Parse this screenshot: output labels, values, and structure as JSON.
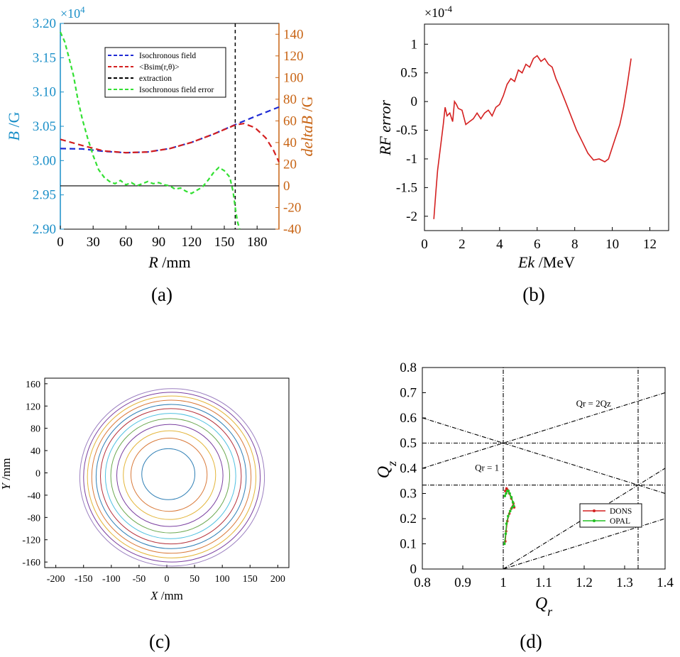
{
  "figure": {
    "labels": [
      "(a)",
      "(b)",
      "(c)",
      "(d)"
    ]
  },
  "colors": {
    "left_axis": "#1a8fc8",
    "right_axis": "#c86414",
    "blue": "#1f2bd4",
    "red": "#d42020",
    "green": "#33e033",
    "black": "#000000",
    "orange_series": "#e06820",
    "green_series": "#22c022"
  },
  "chart_data": [
    {
      "id": "a",
      "type": "line",
      "xlabel_italic": "R",
      "xlabel_unit": " /mm",
      "ylabel_italic": "B",
      "ylabel_unit": " /G",
      "y2label_italic": "deltaB",
      "y2label_unit": " /G",
      "exponent_label": "×10",
      "exponent_power": "4",
      "xlim": [
        0,
        200
      ],
      "ylim": [
        2.9,
        3.2
      ],
      "y2lim": [
        -40,
        150
      ],
      "xticks": [
        "0",
        "30",
        "60",
        "90",
        "120",
        "150",
        "180"
      ],
      "yticks": [
        "2.90",
        "2.95",
        "3.00",
        "3.05",
        "3.10",
        "3.15",
        "3.20"
      ],
      "y2ticks": [
        "-40",
        "-20",
        "0",
        "20",
        "40",
        "60",
        "80",
        "100",
        "120",
        "140"
      ],
      "legend": [
        "Isochronous field",
        "<Bsim(r,θ)>",
        "extraction",
        "Isochronous field error"
      ],
      "series": [
        {
          "name": "Isochronous field",
          "axis": "left",
          "x": [
            0,
            20,
            40,
            60,
            80,
            100,
            120,
            140,
            160,
            180,
            200
          ],
          "y": [
            3.0175,
            3.017,
            3.0135,
            3.0115,
            3.0125,
            3.0175,
            3.0265,
            3.0385,
            3.0525,
            3.0655,
            3.078
          ]
        },
        {
          "name": "<Bsim(r,θ)>",
          "axis": "left",
          "x": [
            0,
            20,
            40,
            60,
            80,
            100,
            120,
            140,
            160,
            168,
            178,
            188,
            195,
            200
          ],
          "y": [
            3.031,
            3.022,
            3.014,
            3.0115,
            3.0125,
            3.0175,
            3.0265,
            3.0385,
            3.052,
            3.054,
            3.048,
            3.033,
            3.015,
            2.998
          ]
        },
        {
          "name": "Isochronous field error",
          "axis": "right",
          "x": [
            0,
            4,
            8,
            12,
            16,
            20,
            25,
            30,
            35,
            40,
            45,
            50,
            55,
            60,
            65,
            70,
            75,
            80,
            85,
            90,
            95,
            100,
            105,
            110,
            115,
            120,
            125,
            130,
            135,
            140,
            145,
            150,
            155,
            158,
            160,
            162,
            164
          ],
          "y": [
            142,
            133,
            118,
            102,
            80,
            62,
            44,
            28,
            15,
            8,
            4,
            2,
            5,
            1,
            3,
            0,
            2,
            4,
            2,
            3,
            1,
            0,
            -3,
            -2,
            -5,
            -7,
            -4,
            -1,
            5,
            12,
            17,
            14,
            8,
            -5,
            -20,
            -33,
            -40
          ]
        }
      ],
      "vline_x": 160,
      "hline_y2": 0
    },
    {
      "id": "b",
      "type": "line",
      "xlabel_italic": "Ek",
      "xlabel_unit": " /MeV",
      "ylabel_italic": "RF error",
      "exponent_label": "×10",
      "exponent_power": "-4",
      "xlim": [
        0,
        13
      ],
      "ylim": [
        -2.25,
        1.35
      ],
      "xticks": [
        "0",
        "2",
        "4",
        "6",
        "8",
        "10",
        "12"
      ],
      "xtick_values": [
        0,
        2,
        4,
        6,
        8,
        10,
        12
      ],
      "yticks": [
        "-2",
        "-1.5",
        "-1",
        "-0.5",
        "0",
        "0.5",
        "1"
      ],
      "ytick_values": [
        -2,
        -1.5,
        -1,
        -0.5,
        0,
        0.5,
        1
      ],
      "series": [
        {
          "name": "RF error",
          "x": [
            0.5,
            0.6,
            0.7,
            0.85,
            1.0,
            1.1,
            1.2,
            1.35,
            1.5,
            1.6,
            1.7,
            1.8,
            2.0,
            2.2,
            2.4,
            2.6,
            2.8,
            3.0,
            3.2,
            3.4,
            3.6,
            3.8,
            4.0,
            4.2,
            4.4,
            4.6,
            4.8,
            5.0,
            5.2,
            5.4,
            5.6,
            5.8,
            6.0,
            6.2,
            6.4,
            6.6,
            6.8,
            7.0,
            7.2,
            7.5,
            7.8,
            8.1,
            8.4,
            8.7,
            9.0,
            9.3,
            9.6,
            9.8,
            10.0,
            10.2,
            10.4,
            10.6,
            10.8,
            11.0
          ],
          "y": [
            -2.05,
            -1.6,
            -1.2,
            -0.8,
            -0.4,
            -0.1,
            -0.25,
            -0.2,
            -0.35,
            0.0,
            -0.05,
            -0.12,
            -0.15,
            -0.4,
            -0.35,
            -0.3,
            -0.2,
            -0.3,
            -0.2,
            -0.15,
            -0.25,
            -0.1,
            -0.05,
            0.1,
            0.3,
            0.4,
            0.35,
            0.55,
            0.5,
            0.65,
            0.6,
            0.75,
            0.8,
            0.7,
            0.75,
            0.65,
            0.6,
            0.4,
            0.25,
            0.0,
            -0.25,
            -0.5,
            -0.7,
            -0.9,
            -1.02,
            -1.0,
            -1.05,
            -1.0,
            -0.8,
            -0.6,
            -0.4,
            -0.1,
            0.3,
            0.75
          ]
        }
      ]
    },
    {
      "id": "c",
      "type": "scatter",
      "description_free": true,
      "xlabel_italic": "X",
      "xlabel_unit": " /mm",
      "ylabel_italic": "Y",
      "ylabel_unit": " /mm",
      "xlim": [
        -220,
        220
      ],
      "ylim": [
        -170,
        170
      ],
      "xticks": [
        "-200",
        "-150",
        "-100",
        "-50",
        "0",
        "50",
        "100",
        "150",
        "200"
      ],
      "xtick_values": [
        -200,
        -150,
        -100,
        -50,
        0,
        50,
        100,
        150,
        200
      ],
      "yticks": [
        "-160",
        "-120",
        "-80",
        "-40",
        "0",
        "40",
        "80",
        "120",
        "160"
      ],
      "ytick_values": [
        -160,
        -120,
        -80,
        -40,
        0,
        40,
        80,
        120,
        160
      ],
      "orbit_radii": [
        46,
        66,
        80,
        92,
        103,
        113,
        122,
        130,
        138,
        146,
        153,
        160
      ],
      "orbit_colors": [
        "#2f7fb5",
        "#d97a3a",
        "#e3b53a",
        "#7a3fa0",
        "#6aa84f",
        "#4fc0e0",
        "#b5303a",
        "#2f7fb5",
        "#d97a3a",
        "#e3b53a",
        "#7a3fa0",
        "#9b7fc0"
      ]
    },
    {
      "id": "d",
      "type": "line",
      "xlabel_italic": "Q",
      "xlabel_sub": "r",
      "ylabel_italic": "Q",
      "ylabel_sub": "z",
      "xlim": [
        0.8,
        1.4
      ],
      "ylim": [
        0,
        0.8
      ],
      "xticks": [
        "0.8",
        "0.9",
        "1",
        "1.1",
        "1.2",
        "1.3",
        "1.4"
      ],
      "xtick_values": [
        0.8,
        0.9,
        1.0,
        1.1,
        1.2,
        1.3,
        1.4
      ],
      "yticks": [
        "0",
        "0.1",
        "0.2",
        "0.3",
        "0.4",
        "0.5",
        "0.6",
        "0.7",
        "0.8"
      ],
      "ytick_values": [
        0,
        0.1,
        0.2,
        0.3,
        0.4,
        0.5,
        0.6,
        0.7,
        0.8
      ],
      "annotations": [
        {
          "text": "Qr = 2Qz",
          "x": 1.18,
          "y": 0.645
        },
        {
          "text": "Qr = 1",
          "x": 0.93,
          "y": 0.39
        }
      ],
      "resonance_lines": [
        {
          "x1": 1.0,
          "y1": 0,
          "x2": 1.0,
          "y2": 0.8
        },
        {
          "x1": 1.3333,
          "y1": 0,
          "x2": 1.3333,
          "y2": 0.8
        },
        {
          "x1": 0.8,
          "y1": 0.5,
          "x2": 1.4,
          "y2": 0.5
        },
        {
          "x1": 0.8,
          "y1": 0.3333,
          "x2": 1.4,
          "y2": 0.3333
        },
        {
          "x1": 0.8,
          "y1": 0.4,
          "x2": 1.4,
          "y2": 0.7
        },
        {
          "x1": 0.8,
          "y1": 0.6,
          "x2": 1.4,
          "y2": 0.3
        },
        {
          "x1": 1.0,
          "y1": 0,
          "x2": 1.4,
          "y2": 0.4
        },
        {
          "x1": 1.0,
          "y1": 0,
          "x2": 1.4,
          "y2": 0.2
        }
      ],
      "legend": [
        "DONS",
        "OPAL"
      ],
      "series": [
        {
          "name": "DONS",
          "x": [
            1.005,
            1.007,
            1.01,
            1.015,
            1.02,
            1.024,
            1.027,
            1.025,
            1.02,
            1.015,
            1.012,
            1.01,
            1.008,
            1.005
          ],
          "y": [
            0.11,
            0.15,
            0.19,
            0.22,
            0.24,
            0.25,
            0.245,
            0.26,
            0.28,
            0.3,
            0.31,
            0.315,
            0.32,
            0.31
          ]
        },
        {
          "name": "OPAL",
          "x": [
            1.003,
            1.006,
            1.008,
            1.012,
            1.017,
            1.022,
            1.026,
            1.024,
            1.02,
            1.016,
            1.013,
            1.01,
            1.007,
            1.004
          ],
          "y": [
            0.1,
            0.14,
            0.18,
            0.21,
            0.23,
            0.245,
            0.25,
            0.265,
            0.285,
            0.3,
            0.31,
            0.31,
            0.3,
            0.29
          ]
        }
      ]
    }
  ]
}
